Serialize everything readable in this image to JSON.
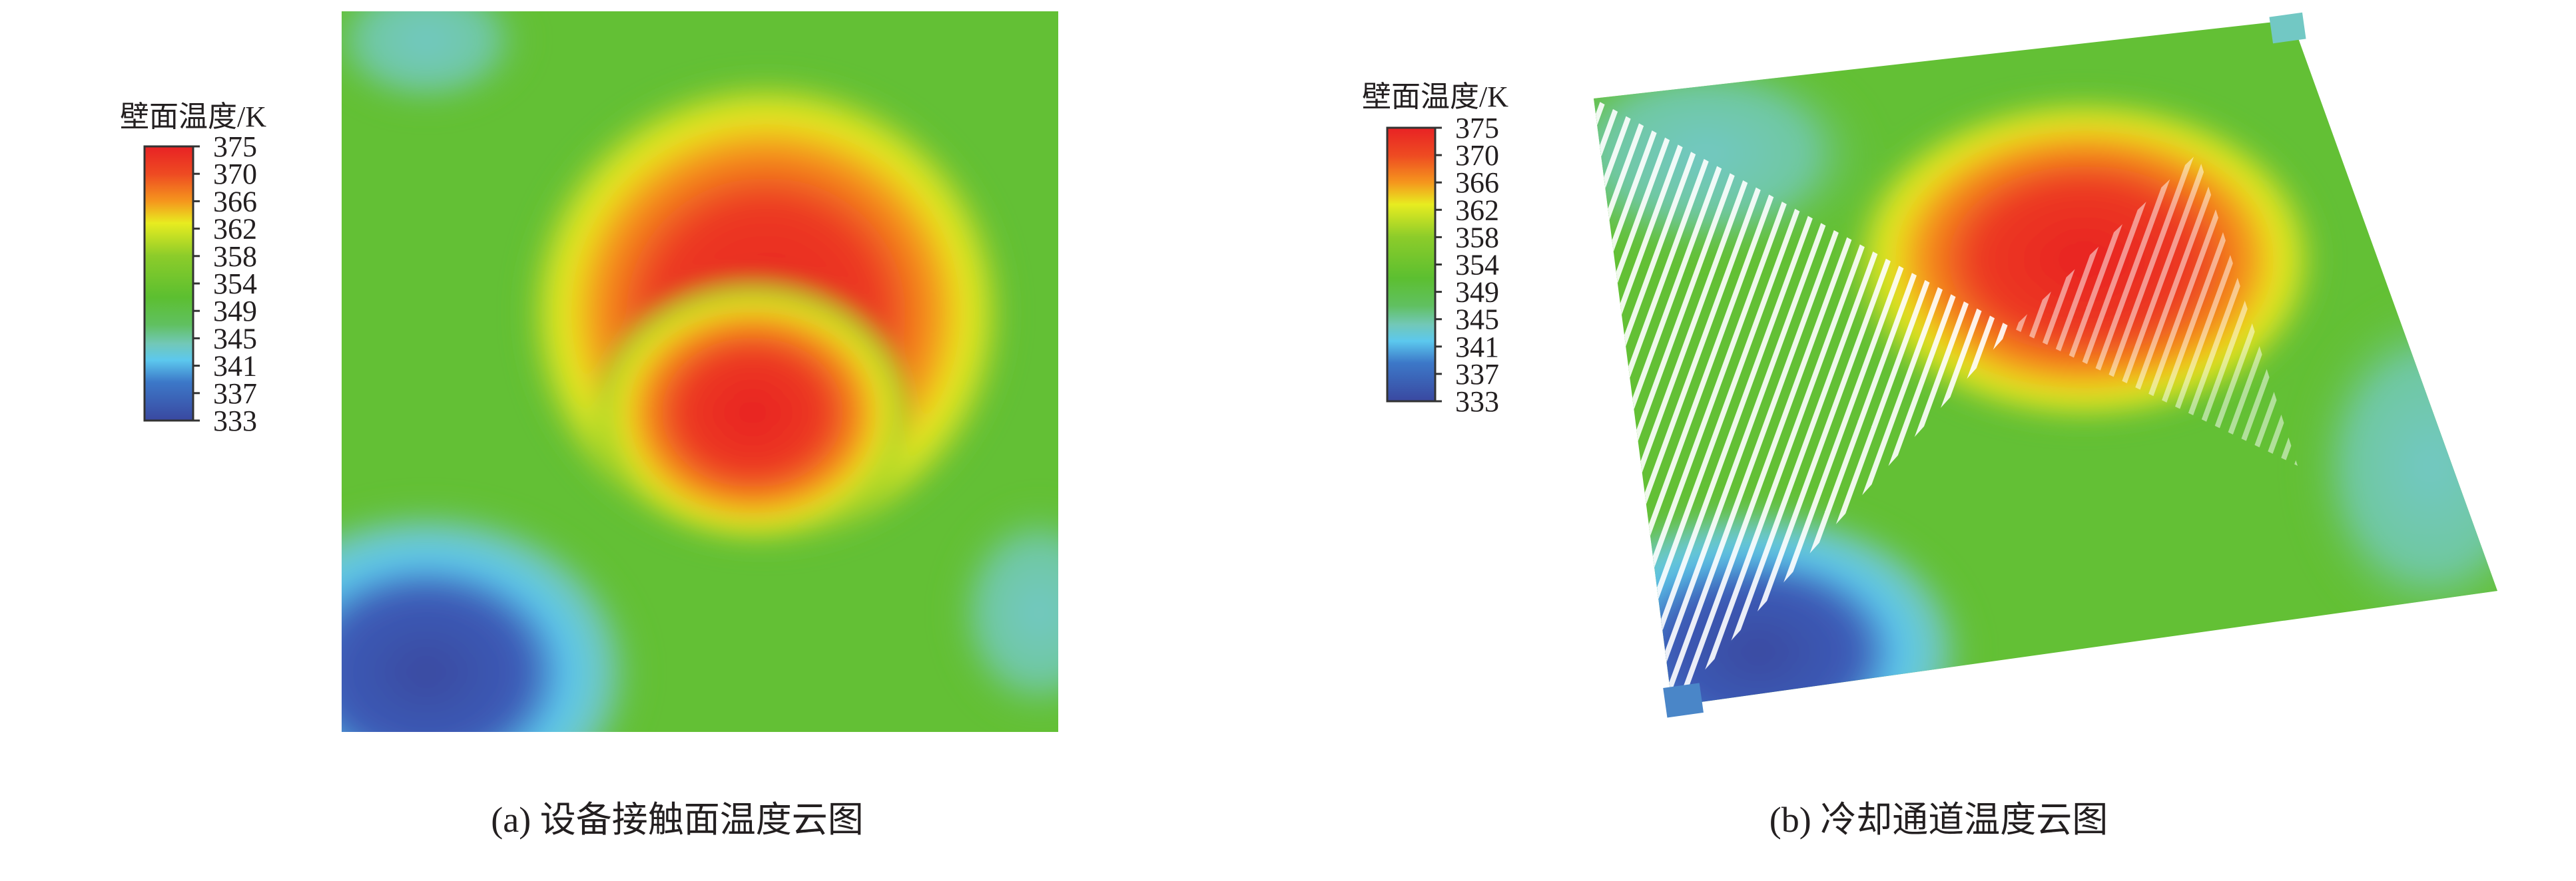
{
  "panels": [
    {
      "id": "a",
      "caption": "(a) 设备接触面温度云图",
      "colorbar": {
        "title": "壁面温度/K",
        "ticks": [
          "375",
          "370",
          "366",
          "362",
          "358",
          "354",
          "349",
          "345",
          "341",
          "337",
          "333"
        ]
      }
    },
    {
      "id": "b",
      "caption": "(b) 冷却通道温度云图",
      "colorbar": {
        "title": "壁面温度/K",
        "ticks": [
          "375",
          "370",
          "366",
          "362",
          "358",
          "354",
          "349",
          "345",
          "341",
          "337",
          "333"
        ]
      }
    }
  ],
  "colormap": [
    "#e82224",
    "#ee5a22",
    "#f5961d",
    "#e8ec20",
    "#9fd02a",
    "#5cbf30",
    "#5cc042",
    "#6cc7a6",
    "#5cc8ee",
    "#3c78c8",
    "#3a4aa0"
  ],
  "colors": {
    "background_field": "#63c035",
    "hot": "#e82224",
    "cold": "#3a4ea8",
    "cool": "#72c8c4"
  }
}
